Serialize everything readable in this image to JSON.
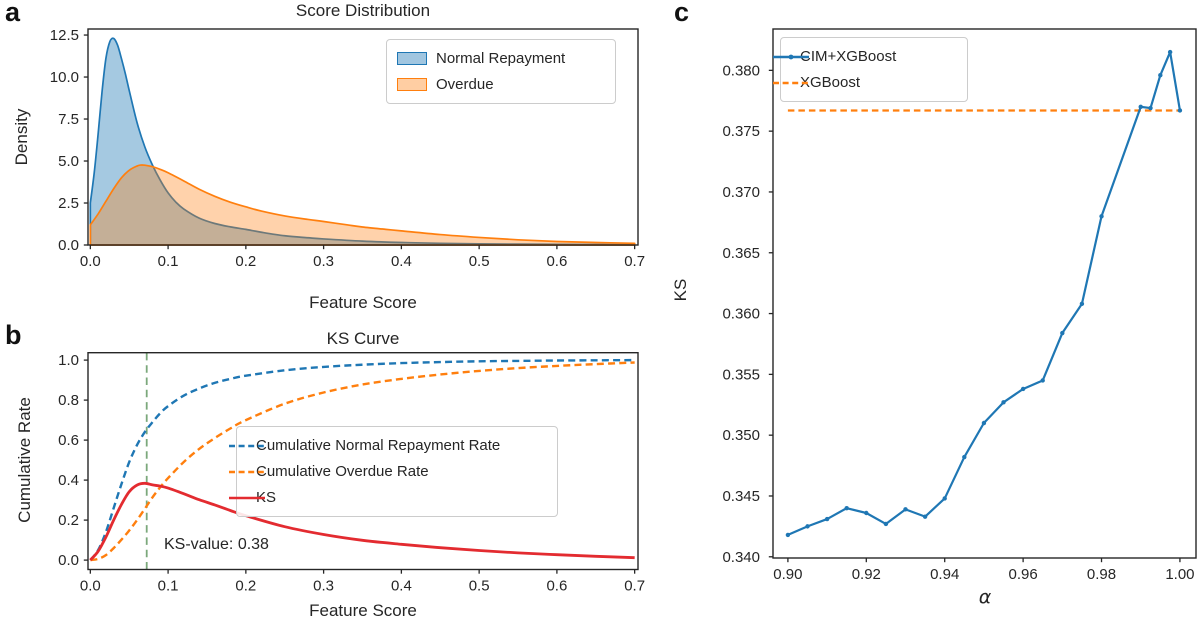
{
  "panel_labels": [
    "a",
    "b",
    "c"
  ],
  "colors": {
    "blue": "#1f77b4",
    "orange": "#ff7f0e",
    "red": "#e32b30",
    "green": "#7ba87b",
    "text": "#262626",
    "spine": "#262626",
    "legend_border": "#cccccc"
  },
  "chart_data": [
    {
      "id": "a",
      "type": "area",
      "title": "Score Distribution",
      "xlabel": "Feature Score",
      "ylabel": "Density",
      "xlim": [
        -0.003,
        0.7043
      ],
      "ylim": [
        0,
        12.86
      ],
      "grid": false,
      "xticks": {
        "values": [
          0,
          0.1,
          0.2,
          0.3,
          0.4,
          0.5,
          0.6,
          0.7
        ],
        "labels": [
          "0.0",
          "0.1",
          "0.2",
          "0.3",
          "0.4",
          "0.5",
          "0.6",
          "0.7"
        ]
      },
      "yticks": {
        "values": [
          0,
          2.5,
          5,
          7.5,
          10,
          12.5
        ],
        "labels": [
          "0.0",
          "2.5",
          "5.0",
          "7.5",
          "10.0",
          "12.5"
        ]
      },
      "legend": {
        "position": "top-right",
        "entries": [
          {
            "label": "Normal Repayment",
            "color": "blue",
            "style": "patch",
            "fill_opacity": 0.42
          },
          {
            "label": "Overdue",
            "color": "orange",
            "style": "patch",
            "fill_opacity": 0.38
          }
        ]
      },
      "series": [
        {
          "name": "Normal Repayment",
          "color": "blue",
          "fill": true,
          "fill_opacity": 0.4,
          "smooth": true,
          "points": [
            [
              0,
              2.5
            ],
            [
              0.005,
              4.3
            ],
            [
              0.01,
              6.6
            ],
            [
              0.015,
              9.1
            ],
            [
              0.02,
              11.1
            ],
            [
              0.025,
              12.1
            ],
            [
              0.03,
              12.3
            ],
            [
              0.035,
              11.9
            ],
            [
              0.04,
              11.1
            ],
            [
              0.045,
              10.2
            ],
            [
              0.05,
              9.2
            ],
            [
              0.06,
              7.3
            ],
            [
              0.07,
              5.85
            ],
            [
              0.08,
              4.75
            ],
            [
              0.09,
              3.85
            ],
            [
              0.1,
              3.1
            ],
            [
              0.11,
              2.55
            ],
            [
              0.12,
              2.15
            ],
            [
              0.14,
              1.6
            ],
            [
              0.16,
              1.28
            ],
            [
              0.18,
              1.08
            ],
            [
              0.2,
              0.93
            ],
            [
              0.22,
              0.76
            ],
            [
              0.25,
              0.55
            ],
            [
              0.28,
              0.43
            ],
            [
              0.3,
              0.36
            ],
            [
              0.35,
              0.23
            ],
            [
              0.4,
              0.15
            ],
            [
              0.45,
              0.1
            ],
            [
              0.5,
              0.07
            ],
            [
              0.55,
              0.05
            ],
            [
              0.6,
              0.04
            ],
            [
              0.65,
              0.03
            ],
            [
              0.7,
              0.02
            ]
          ]
        },
        {
          "name": "Overdue",
          "color": "orange",
          "fill": true,
          "fill_opacity": 0.35,
          "smooth": true,
          "points": [
            [
              0,
              1.2
            ],
            [
              0.01,
              1.85
            ],
            [
              0.02,
              2.6
            ],
            [
              0.03,
              3.35
            ],
            [
              0.04,
              4.0
            ],
            [
              0.05,
              4.45
            ],
            [
              0.06,
              4.7
            ],
            [
              0.065,
              4.76
            ],
            [
              0.07,
              4.75
            ],
            [
              0.08,
              4.66
            ],
            [
              0.09,
              4.5
            ],
            [
              0.1,
              4.3
            ],
            [
              0.12,
              3.82
            ],
            [
              0.14,
              3.32
            ],
            [
              0.16,
              2.9
            ],
            [
              0.18,
              2.55
            ],
            [
              0.2,
              2.27
            ],
            [
              0.22,
              2.02
            ],
            [
              0.25,
              1.73
            ],
            [
              0.28,
              1.52
            ],
            [
              0.3,
              1.4
            ],
            [
              0.33,
              1.2
            ],
            [
              0.35,
              1.07
            ],
            [
              0.38,
              0.93
            ],
            [
              0.4,
              0.84
            ],
            [
              0.45,
              0.62
            ],
            [
              0.5,
              0.45
            ],
            [
              0.55,
              0.31
            ],
            [
              0.6,
              0.21
            ],
            [
              0.65,
              0.15
            ],
            [
              0.7,
              0.1
            ]
          ]
        }
      ]
    },
    {
      "id": "b",
      "type": "line",
      "title": "KS Curve",
      "xlabel": "Feature Score",
      "ylabel": "Cumulative Rate",
      "xlim": [
        -0.003,
        0.7043
      ],
      "ylim": [
        -0.047,
        1.037
      ],
      "grid": false,
      "xticks": {
        "values": [
          0,
          0.1,
          0.2,
          0.3,
          0.4,
          0.5,
          0.6,
          0.7
        ],
        "labels": [
          "0.0",
          "0.1",
          "0.2",
          "0.3",
          "0.4",
          "0.5",
          "0.6",
          "0.7"
        ]
      },
      "yticks": {
        "values": [
          0,
          0.2,
          0.4,
          0.6,
          0.8,
          1.0
        ],
        "labels": [
          "0.0",
          "0.2",
          "0.4",
          "0.6",
          "0.8",
          "1.0"
        ]
      },
      "vline": {
        "x": 0.0725,
        "color": "green",
        "dash": "7.5 4.8",
        "width": 1.8
      },
      "annotation": {
        "text": "KS-value: 0.38",
        "x": 0.1,
        "y": 0.06
      },
      "legend": {
        "position": "center-right",
        "entries": [
          {
            "label": "Cumulative Normal Repayment Rate",
            "color": "blue",
            "style": "dashed"
          },
          {
            "label": "Cumulative Overdue Rate",
            "color": "orange",
            "style": "dashed"
          },
          {
            "label": "KS",
            "color": "red",
            "style": "solid"
          }
        ]
      },
      "series": [
        {
          "name": "Cumulative Normal Repayment Rate",
          "color": "blue",
          "dash": "7 4.2",
          "width": 2.4,
          "smooth": true,
          "points": [
            [
              0,
              0
            ],
            [
              0.01,
              0.05
            ],
            [
              0.02,
              0.14
            ],
            [
              0.03,
              0.26
            ],
            [
              0.04,
              0.38
            ],
            [
              0.05,
              0.49
            ],
            [
              0.06,
              0.575
            ],
            [
              0.07,
              0.64
            ],
            [
              0.08,
              0.69
            ],
            [
              0.09,
              0.735
            ],
            [
              0.1,
              0.77
            ],
            [
              0.12,
              0.822
            ],
            [
              0.14,
              0.858
            ],
            [
              0.16,
              0.886
            ],
            [
              0.18,
              0.906
            ],
            [
              0.2,
              0.922
            ],
            [
              0.25,
              0.949
            ],
            [
              0.3,
              0.966
            ],
            [
              0.35,
              0.977
            ],
            [
              0.4,
              0.985
            ],
            [
              0.45,
              0.99
            ],
            [
              0.5,
              0.994
            ],
            [
              0.55,
              0.996
            ],
            [
              0.6,
              0.998
            ],
            [
              0.65,
              0.999
            ],
            [
              0.7,
              1.0
            ]
          ]
        },
        {
          "name": "Cumulative Overdue Rate",
          "color": "orange",
          "dash": "7 4.2",
          "width": 2.4,
          "smooth": true,
          "points": [
            [
              0,
              0
            ],
            [
              0.01,
              0.006
            ],
            [
              0.02,
              0.025
            ],
            [
              0.03,
              0.06
            ],
            [
              0.04,
              0.102
            ],
            [
              0.05,
              0.148
            ],
            [
              0.06,
              0.2
            ],
            [
              0.07,
              0.256
            ],
            [
              0.08,
              0.314
            ],
            [
              0.09,
              0.365
            ],
            [
              0.1,
              0.41
            ],
            [
              0.12,
              0.49
            ],
            [
              0.14,
              0.556
            ],
            [
              0.16,
              0.61
            ],
            [
              0.18,
              0.658
            ],
            [
              0.2,
              0.7
            ],
            [
              0.25,
              0.782
            ],
            [
              0.3,
              0.838
            ],
            [
              0.35,
              0.878
            ],
            [
              0.4,
              0.906
            ],
            [
              0.45,
              0.928
            ],
            [
              0.5,
              0.946
            ],
            [
              0.55,
              0.96
            ],
            [
              0.6,
              0.971
            ],
            [
              0.65,
              0.98
            ],
            [
              0.7,
              0.988
            ]
          ]
        },
        {
          "name": "KS",
          "color": "red",
          "width": 2.8,
          "smooth": true,
          "points": [
            [
              0,
              0
            ],
            [
              0.01,
              0.044
            ],
            [
              0.02,
              0.115
            ],
            [
              0.03,
              0.2
            ],
            [
              0.04,
              0.278
            ],
            [
              0.05,
              0.342
            ],
            [
              0.06,
              0.375
            ],
            [
              0.07,
              0.384
            ],
            [
              0.08,
              0.376
            ],
            [
              0.09,
              0.37
            ],
            [
              0.1,
              0.36
            ],
            [
              0.12,
              0.332
            ],
            [
              0.14,
              0.302
            ],
            [
              0.16,
              0.276
            ],
            [
              0.18,
              0.248
            ],
            [
              0.2,
              0.222
            ],
            [
              0.25,
              0.167
            ],
            [
              0.3,
              0.128
            ],
            [
              0.35,
              0.099
            ],
            [
              0.4,
              0.079
            ],
            [
              0.45,
              0.062
            ],
            [
              0.5,
              0.048
            ],
            [
              0.55,
              0.036
            ],
            [
              0.6,
              0.027
            ],
            [
              0.65,
              0.019
            ],
            [
              0.7,
              0.012
            ]
          ]
        }
      ]
    },
    {
      "id": "c",
      "type": "line",
      "title": "",
      "xlabel": "α",
      "ylabel": "KS",
      "xlim": [
        0.8962,
        1.0041
      ],
      "ylim": [
        0.3399,
        0.3834
      ],
      "grid": false,
      "xticks": {
        "values": [
          0.9,
          0.92,
          0.94,
          0.96,
          0.98,
          1.0
        ],
        "labels": [
          "0.90",
          "0.92",
          "0.94",
          "0.96",
          "0.98",
          "1.00"
        ]
      },
      "yticks": {
        "values": [
          0.34,
          0.345,
          0.35,
          0.355,
          0.36,
          0.365,
          0.37,
          0.375,
          0.38
        ],
        "labels": [
          "0.340",
          "0.345",
          "0.350",
          "0.355",
          "0.360",
          "0.365",
          "0.370",
          "0.375",
          "0.380"
        ]
      },
      "baseline": {
        "name": "XGBoost",
        "value": 0.3767,
        "from": 0.9,
        "to": 1.0,
        "color": "orange",
        "dash": "6.5 4",
        "width": 2.2
      },
      "legend": {
        "position": "top-left",
        "entries": [
          {
            "label": "CIM+XGBoost",
            "color": "blue",
            "style": "solid-marker"
          },
          {
            "label": "XGBoost",
            "color": "orange",
            "style": "dashed"
          }
        ]
      },
      "series": [
        {
          "name": "CIM+XGBoost",
          "color": "blue",
          "width": 2.2,
          "markers": true,
          "smooth": false,
          "points": [
            [
              0.9,
              0.3418
            ],
            [
              0.905,
              0.3425
            ],
            [
              0.91,
              0.3431
            ],
            [
              0.915,
              0.344
            ],
            [
              0.92,
              0.3436
            ],
            [
              0.925,
              0.3427
            ],
            [
              0.93,
              0.3439
            ],
            [
              0.935,
              0.3433
            ],
            [
              0.94,
              0.3448
            ],
            [
              0.945,
              0.3482
            ],
            [
              0.95,
              0.351
            ],
            [
              0.955,
              0.3527
            ],
            [
              0.96,
              0.3538
            ],
            [
              0.965,
              0.3545
            ],
            [
              0.97,
              0.3584
            ],
            [
              0.975,
              0.3608
            ],
            [
              0.98,
              0.368
            ],
            [
              0.99,
              0.377
            ],
            [
              0.9925,
              0.3769
            ],
            [
              0.995,
              0.3796
            ],
            [
              0.9975,
              0.3815
            ],
            [
              1.0,
              0.3767
            ]
          ]
        }
      ]
    }
  ]
}
